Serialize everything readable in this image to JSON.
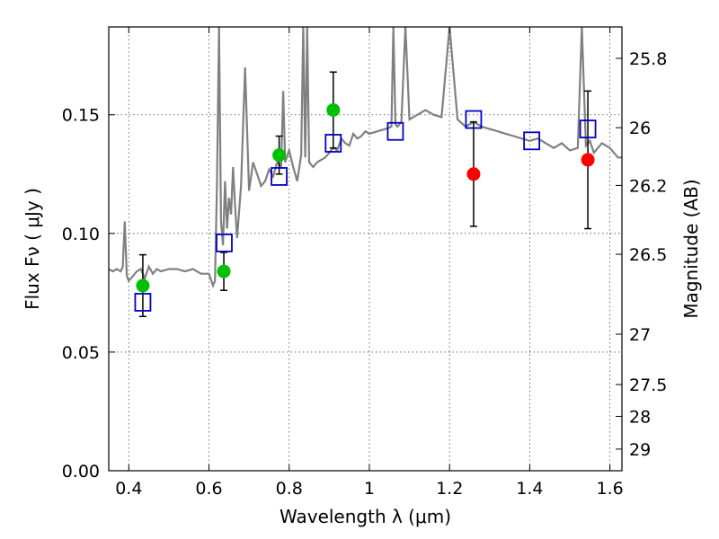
{
  "chart_data": {
    "type": "scatter",
    "title": "",
    "xlabel": "Wavelength  λ (μm)",
    "ylabel": "Flux  Fν  ( μJy )",
    "y2label": "Magnitude (AB)",
    "xlim": [
      0.35,
      1.63
    ],
    "ylim": [
      0.0,
      0.187
    ],
    "grid": true,
    "x_ticks": [
      0.4,
      0.6,
      0.8,
      1.0,
      1.2,
      1.4,
      1.6
    ],
    "x_tick_labels": [
      "0.4",
      "0.6",
      "0.8",
      "1",
      "1.2",
      "1.4",
      "1.6"
    ],
    "y_ticks": [
      0.0,
      0.05,
      0.1,
      0.15
    ],
    "y_tick_labels": [
      "0.00",
      "0.05",
      "0.10",
      "0.15"
    ],
    "mag_ticks": [
      25.8,
      26,
      26.2,
      26.5,
      27,
      27.5,
      28,
      29
    ],
    "mag_tick_labels": [
      "25.8",
      "26",
      "26.2",
      "26.5",
      "27",
      "27.5",
      "28",
      "29"
    ],
    "colors": {
      "spectrum": "#808080",
      "green": "#00c000",
      "red": "#ff0000",
      "model_box": "#0000cc",
      "model_box_inner": "#cc3366",
      "errorbar": "#000000"
    },
    "series": [
      {
        "kind": "spectrum",
        "x": [
          0.35,
          0.36,
          0.37,
          0.38,
          0.385,
          0.39,
          0.395,
          0.4,
          0.41,
          0.42,
          0.43,
          0.44,
          0.45,
          0.46,
          0.47,
          0.48,
          0.5,
          0.52,
          0.54,
          0.56,
          0.58,
          0.6,
          0.61,
          0.615,
          0.62,
          0.625,
          0.63,
          0.635,
          0.64,
          0.645,
          0.65,
          0.655,
          0.66,
          0.665,
          0.67,
          0.68,
          0.69,
          0.7,
          0.71,
          0.72,
          0.73,
          0.74,
          0.75,
          0.76,
          0.77,
          0.78,
          0.785,
          0.79,
          0.8,
          0.81,
          0.82,
          0.83,
          0.835,
          0.84,
          0.845,
          0.85,
          0.86,
          0.87,
          0.88,
          0.89,
          0.9,
          0.91,
          0.92,
          0.93,
          0.94,
          0.95,
          0.96,
          0.97,
          0.98,
          0.99,
          1.0,
          1.02,
          1.04,
          1.055,
          1.06,
          1.065,
          1.07,
          1.08,
          1.09,
          1.1,
          1.12,
          1.14,
          1.16,
          1.18,
          1.2,
          1.22,
          1.24,
          1.26,
          1.28,
          1.3,
          1.32,
          1.34,
          1.36,
          1.38,
          1.4,
          1.42,
          1.44,
          1.46,
          1.48,
          1.5,
          1.52,
          1.53,
          1.54,
          1.55,
          1.56,
          1.58,
          1.6,
          1.62,
          1.63
        ],
        "y": [
          0.085,
          0.084,
          0.085,
          0.084,
          0.086,
          0.105,
          0.082,
          0.08,
          0.082,
          0.084,
          0.085,
          0.081,
          0.086,
          0.083,
          0.085,
          0.084,
          0.085,
          0.085,
          0.084,
          0.085,
          0.083,
          0.083,
          0.078,
          0.08,
          0.12,
          0.187,
          0.105,
          0.095,
          0.122,
          0.102,
          0.115,
          0.108,
          0.128,
          0.112,
          0.098,
          0.12,
          0.17,
          0.118,
          0.13,
          0.125,
          0.12,
          0.122,
          0.127,
          0.124,
          0.13,
          0.128,
          0.16,
          0.13,
          0.135,
          0.128,
          0.122,
          0.133,
          0.187,
          0.132,
          0.187,
          0.13,
          0.128,
          0.13,
          0.131,
          0.132,
          0.134,
          0.136,
          0.135,
          0.14,
          0.138,
          0.137,
          0.142,
          0.14,
          0.141,
          0.143,
          0.142,
          0.143,
          0.144,
          0.145,
          0.187,
          0.146,
          0.145,
          0.147,
          0.187,
          0.148,
          0.15,
          0.152,
          0.15,
          0.149,
          0.187,
          0.148,
          0.145,
          0.147,
          0.145,
          0.144,
          0.143,
          0.142,
          0.141,
          0.14,
          0.139,
          0.14,
          0.138,
          0.136,
          0.138,
          0.135,
          0.136,
          0.187,
          0.137,
          0.139,
          0.134,
          0.138,
          0.136,
          0.132,
          0.132
        ]
      },
      {
        "kind": "observed",
        "color": "green",
        "points": [
          {
            "x": 0.435,
            "y": 0.078,
            "err": 0.013
          },
          {
            "x": 0.637,
            "y": 0.084,
            "err": 0.008
          },
          {
            "x": 0.775,
            "y": 0.133,
            "err": 0.008
          },
          {
            "x": 0.91,
            "y": 0.152,
            "err": 0.016
          }
        ]
      },
      {
        "kind": "observed",
        "color": "red",
        "points": [
          {
            "x": 1.26,
            "y": 0.125,
            "err": 0.022
          },
          {
            "x": 1.545,
            "y": 0.131,
            "err": 0.029
          }
        ]
      },
      {
        "kind": "model",
        "color": "model_box",
        "points": [
          {
            "x": 0.435,
            "y": 0.071
          },
          {
            "x": 0.638,
            "y": 0.096
          },
          {
            "x": 0.775,
            "y": 0.124
          },
          {
            "x": 0.91,
            "y": 0.138
          },
          {
            "x": 1.065,
            "y": 0.143
          },
          {
            "x": 1.26,
            "y": 0.148
          },
          {
            "x": 1.405,
            "y": 0.139
          },
          {
            "x": 1.545,
            "y": 0.144
          }
        ]
      }
    ]
  }
}
